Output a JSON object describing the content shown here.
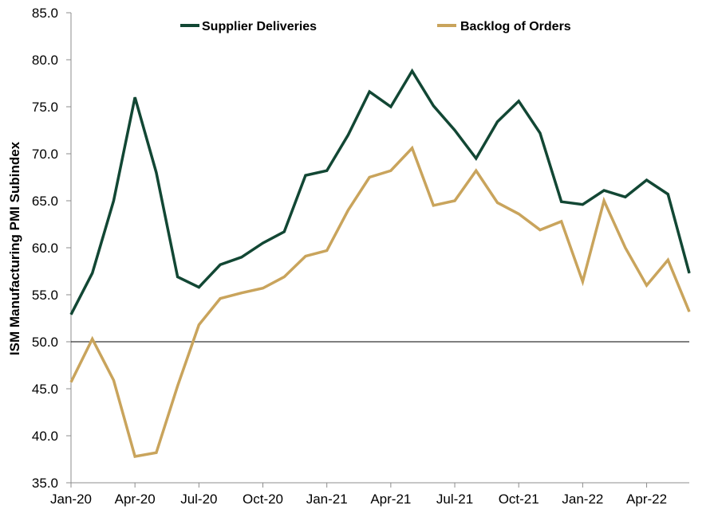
{
  "chart_data": {
    "type": "line",
    "title": "",
    "xlabel": "",
    "ylabel": "ISM Manufacturing PMI Subindex",
    "ylim": [
      35,
      85
    ],
    "yticks": [
      "35.0",
      "40.0",
      "45.0",
      "50.0",
      "55.0",
      "60.0",
      "65.0",
      "70.0",
      "75.0",
      "80.0",
      "85.0"
    ],
    "x": [
      "Jan-20",
      "Feb-20",
      "Mar-20",
      "Apr-20",
      "May-20",
      "Jun-20",
      "Jul-20",
      "Aug-20",
      "Sep-20",
      "Oct-20",
      "Nov-20",
      "Dec-20",
      "Jan-21",
      "Feb-21",
      "Mar-21",
      "Apr-21",
      "May-21",
      "Jun-21",
      "Jul-21",
      "Aug-21",
      "Sep-21",
      "Oct-21",
      "Nov-21",
      "Dec-21",
      "Jan-22",
      "Feb-22",
      "Mar-22",
      "Apr-22",
      "May-22",
      "Jun-22"
    ],
    "xtick_labels": [
      "Jan-20",
      "Apr-20",
      "Jul-20",
      "Oct-20",
      "Jan-21",
      "Apr-21",
      "Jul-21",
      "Oct-21",
      "Jan-22",
      "Apr-22"
    ],
    "reference_line": 50,
    "legend_position": "top",
    "grid": false,
    "series": [
      {
        "name": "Supplier Deliveries",
        "color": "#124734",
        "values": [
          52.9,
          57.3,
          65.0,
          76.0,
          68.0,
          56.9,
          55.8,
          58.2,
          59.0,
          60.5,
          61.7,
          67.7,
          68.2,
          72.0,
          76.6,
          75.0,
          78.8,
          75.1,
          72.5,
          69.5,
          73.4,
          75.6,
          72.2,
          64.9,
          64.6,
          66.1,
          65.4,
          67.2,
          65.7,
          57.3
        ]
      },
      {
        "name": "Backlog of Orders",
        "color": "#C9A45C",
        "values": [
          45.7,
          50.3,
          45.9,
          37.8,
          38.2,
          45.3,
          51.8,
          54.6,
          55.2,
          55.7,
          56.9,
          59.1,
          59.7,
          64.0,
          67.5,
          68.2,
          70.6,
          64.5,
          65.0,
          68.2,
          64.8,
          63.6,
          61.9,
          62.8,
          56.4,
          65.0,
          60.0,
          56.0,
          58.7,
          53.2
        ]
      }
    ]
  }
}
